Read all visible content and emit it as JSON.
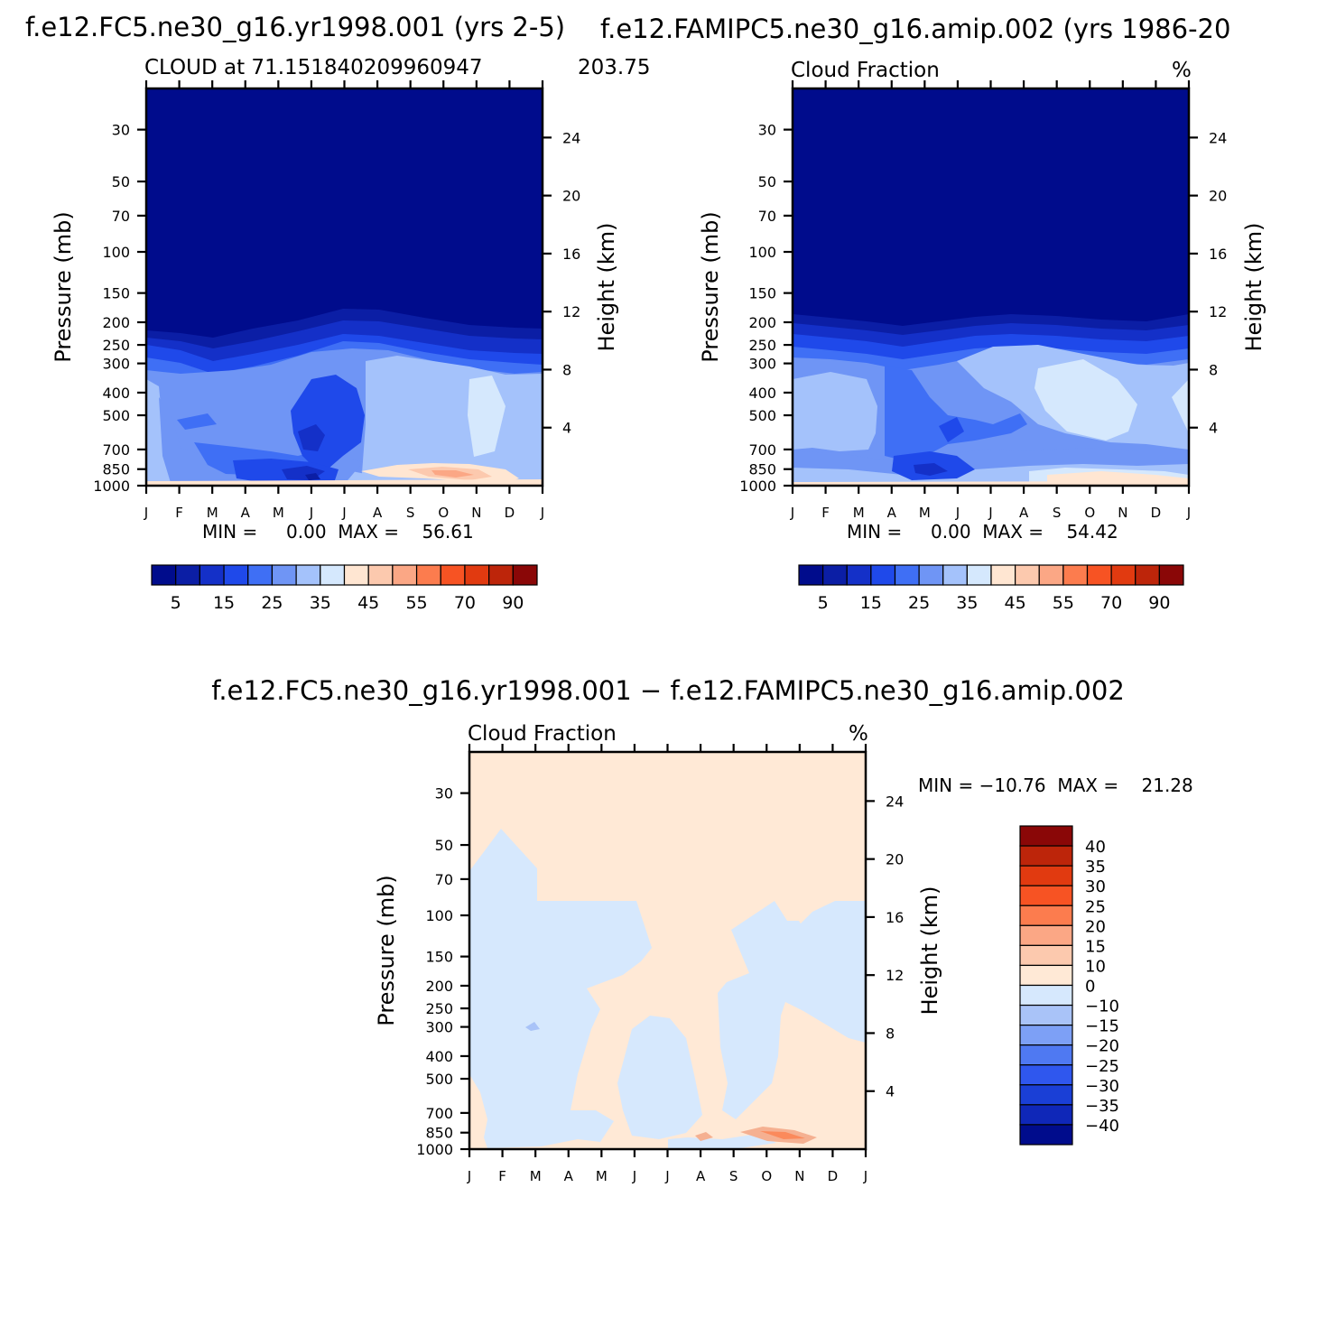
{
  "colors": {
    "blue_scale": [
      "#000c8c",
      "#0b1ea5",
      "#1430c8",
      "#1f49ea",
      "#3f6ff5",
      "#6f95f5",
      "#a4c2fb",
      "#d5e8fd"
    ],
    "red_scale": [
      "#ffe6d2",
      "#fcc9ae",
      "#fba785",
      "#fc7c4e",
      "#f75323",
      "#e13a10",
      "#bd250a",
      "#8a0707"
    ],
    "diff_zero_pos": "#ffe9d6",
    "diff_zero_neg": "#d6e8fd",
    "diff_neg15": "#a9c3f8",
    "diff_pos15": "#f5b091"
  },
  "chart_data": [
    {
      "type": "heatmap",
      "header": "f.e12.FC5.ne30_g16.yr1998.001 (yrs 2-5)",
      "left_title": "CLOUD at 71.151840209960947",
      "right_title": "203.75",
      "xlabel": "",
      "ylabel": "Pressure (mb)",
      "y2label": "Height (km)",
      "x_ticks": [
        "J",
        "F",
        "M",
        "A",
        "M",
        "J",
        "J",
        "A",
        "S",
        "O",
        "N",
        "D",
        "J"
      ],
      "y_ticks": [
        "30",
        "50",
        "70",
        "100",
        "150",
        "200",
        "250",
        "300",
        "400",
        "500",
        "700",
        "850",
        "1000"
      ],
      "y2_ticks": [
        "24",
        "20",
        "16",
        "12",
        "8",
        "4"
      ],
      "min_max_text": "MIN =     0.00  MAX =    56.61",
      "min": 0.0,
      "max": 56.61,
      "colorbar_labels": [
        "5",
        "15",
        "25",
        "35",
        "45",
        "55",
        "70",
        "90"
      ]
    },
    {
      "type": "heatmap",
      "header": "f.e12.FAMIPC5.ne30_g16.amip.002 (yrs 1986-20",
      "left_title": "Cloud Fraction",
      "right_title": "%",
      "xlabel": "",
      "ylabel": "Pressure (mb)",
      "y2label": "Height (km)",
      "x_ticks": [
        "J",
        "F",
        "M",
        "A",
        "M",
        "J",
        "J",
        "A",
        "S",
        "O",
        "N",
        "D",
        "J"
      ],
      "y_ticks": [
        "30",
        "50",
        "70",
        "100",
        "150",
        "200",
        "250",
        "300",
        "400",
        "500",
        "700",
        "850",
        "1000"
      ],
      "y2_ticks": [
        "24",
        "20",
        "16",
        "12",
        "8",
        "4"
      ],
      "min_max_text": "MIN =     0.00  MAX =    54.42",
      "min": 0.0,
      "max": 54.42,
      "colorbar_labels": [
        "5",
        "15",
        "25",
        "35",
        "45",
        "55",
        "70",
        "90"
      ]
    },
    {
      "type": "heatmap",
      "header": "f.e12.FC5.ne30_g16.yr1998.001 − f.e12.FAMIPC5.ne30_g16.amip.002",
      "left_title": "Cloud Fraction",
      "right_title": "%",
      "xlabel": "",
      "ylabel": "Pressure (mb)",
      "y2label": "Height (km)",
      "x_ticks": [
        "J",
        "F",
        "M",
        "A",
        "M",
        "J",
        "J",
        "A",
        "S",
        "O",
        "N",
        "D",
        "J"
      ],
      "y_ticks": [
        "30",
        "50",
        "70",
        "100",
        "150",
        "200",
        "250",
        "300",
        "400",
        "500",
        "700",
        "850",
        "1000"
      ],
      "y2_ticks": [
        "24",
        "20",
        "16",
        "12",
        "8",
        "4"
      ],
      "min_max_text": "MIN = −10.76  MAX =    21.28",
      "min": -10.76,
      "max": 21.28,
      "colorbar_labels": [
        "40",
        "35",
        "30",
        "25",
        "20",
        "15",
        "10",
        "0",
        "−10",
        "−15",
        "−20",
        "−25",
        "−30",
        "−35",
        "−40"
      ]
    }
  ]
}
